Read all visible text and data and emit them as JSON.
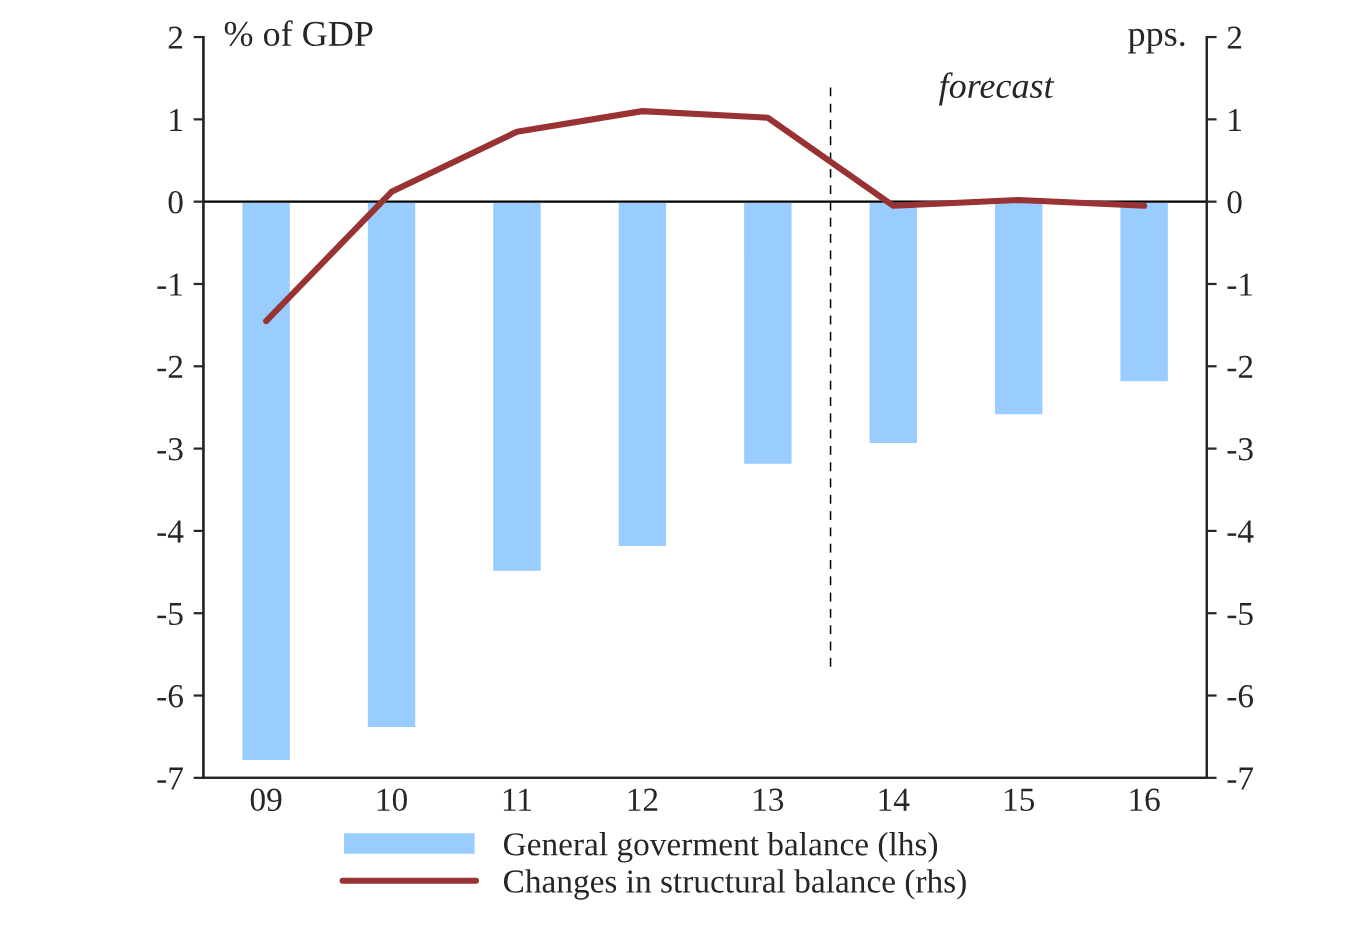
{
  "chart_data": {
    "type": "bar",
    "ylabel": "% of GDP",
    "y2label": "pps.",
    "categories": [
      "09",
      "10",
      "11",
      "12",
      "13",
      "14",
      "15",
      "16"
    ],
    "series": [
      {
        "name": "General goverment balance (lhs)",
        "color": "#99ccff",
        "values": [
          -6.8,
          -6.4,
          -4.5,
          -4.2,
          -3.2,
          -2.95,
          -2.6,
          -2.2
        ]
      },
      {
        "name": "Changes in structural balance (rhs)",
        "type": "line",
        "axis": "y2",
        "color": "#993333",
        "values": [
          -1.45,
          0.12,
          0.85,
          1.1,
          1.02,
          -0.05,
          0.02,
          -0.05
        ]
      }
    ],
    "ylim": [
      -7,
      2
    ],
    "yticks": [
      -7,
      -6,
      -5,
      -4,
      -3,
      -2,
      -1,
      0,
      1,
      2
    ],
    "y2lim": [
      -7,
      2
    ],
    "y2ticks": [
      -7,
      -6,
      -5,
      -4,
      -3,
      -2,
      -1,
      0,
      1,
      2
    ],
    "annotations": [
      "forecast"
    ],
    "legend": "bottom"
  }
}
